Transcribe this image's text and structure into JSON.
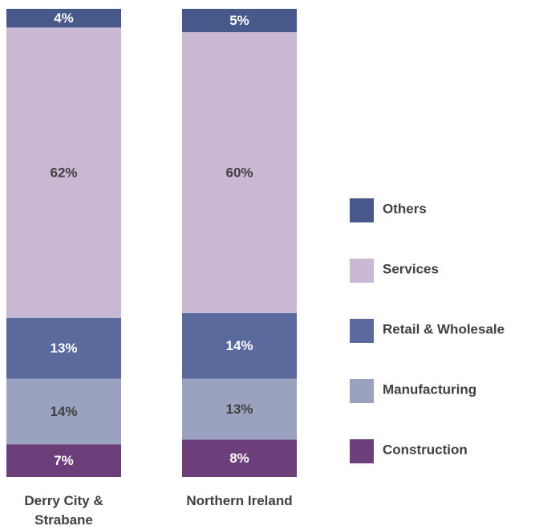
{
  "chart_data": {
    "type": "stacked_bar",
    "categories": [
      "Derry City & Strabane",
      "Northern Ireland"
    ],
    "ylim": [
      0,
      100
    ],
    "series": [
      {
        "name": "Construction",
        "color": "#6d3f7a",
        "values": [
          7,
          8
        ],
        "value_labels": [
          "7%",
          "8%"
        ]
      },
      {
        "name": "Manufacturing",
        "color": "#9aa2c0",
        "values": [
          14,
          13
        ],
        "value_labels": [
          "14%",
          "13%"
        ]
      },
      {
        "name": "Retail & Wholesale",
        "color": "#5a6a9c",
        "values": [
          13,
          14
        ],
        "value_labels": [
          "13%",
          "14%"
        ]
      },
      {
        "name": "Services",
        "color": "#c9b8d3",
        "values": [
          62,
          60
        ],
        "value_labels": [
          "62%",
          "60%"
        ]
      },
      {
        "name": "Others",
        "color": "#46598a",
        "values": [
          4,
          5
        ],
        "value_labels": [
          "4%",
          "5%"
        ]
      }
    ]
  }
}
